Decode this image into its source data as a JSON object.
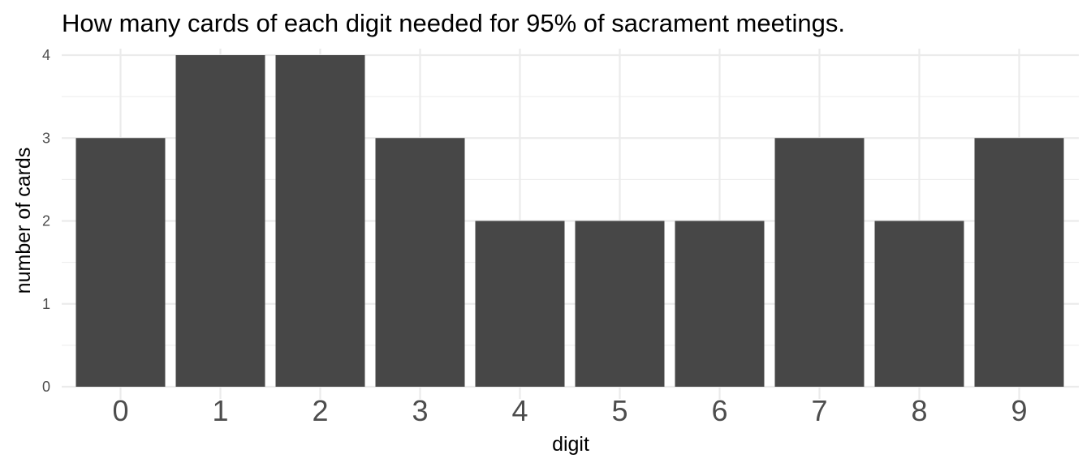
{
  "chart_data": {
    "type": "bar",
    "title": "How many cards of each digit needed for 95% of sacrament meetings.",
    "xlabel": "digit",
    "ylabel": "number of cards",
    "categories": [
      "0",
      "1",
      "2",
      "3",
      "4",
      "5",
      "6",
      "7",
      "8",
      "9"
    ],
    "values": [
      3,
      4,
      4,
      3,
      2,
      2,
      2,
      3,
      2,
      3
    ],
    "ylim": [
      0,
      4
    ],
    "yticks": [
      "0",
      "1",
      "2",
      "3",
      "4"
    ],
    "grid": true,
    "bar_color": "#474747",
    "legend": "none"
  }
}
